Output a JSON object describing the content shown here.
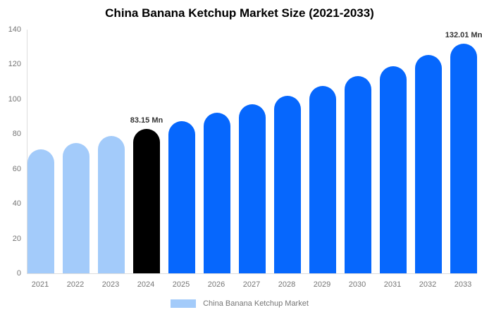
{
  "chart_data": {
    "type": "bar",
    "title": "China Banana Ketchup Market Size (2021-2033)",
    "xlabel": "",
    "ylabel": "",
    "unit": "Mn",
    "ylim": [
      0,
      140
    ],
    "yticks": [
      0,
      20,
      40,
      60,
      80,
      100,
      120,
      140
    ],
    "grid": false,
    "categories": [
      "2021",
      "2022",
      "2023",
      "2024",
      "2025",
      "2026",
      "2027",
      "2028",
      "2029",
      "2030",
      "2031",
      "2032",
      "2033"
    ],
    "values": [
      71.28,
      75.03,
      78.99,
      83.15,
      87.53,
      92.15,
      97.0,
      102.11,
      107.49,
      113.16,
      119.12,
      125.4,
      132.01
    ],
    "bar_labels": [
      "",
      "",
      "",
      "83.15 Mn",
      "",
      "",
      "",
      "",
      "",
      "",
      "",
      "",
      "132.01 Mn"
    ],
    "bar_colors": [
      "#A3CBFA",
      "#A3CBFA",
      "#A3CBFA",
      "#000000",
      "#0667FD",
      "#0667FD",
      "#0667FD",
      "#0667FD",
      "#0667FD",
      "#0667FD",
      "#0667FD",
      "#0667FD",
      "#0667FD"
    ],
    "colors": {
      "historical": "#A3CBFA",
      "base_year": "#000000",
      "forecast": "#0667FD",
      "axis_line": "#DDDDDD",
      "tick_text": "#757575",
      "value_label_text": "#333333",
      "title_text": "#000000"
    },
    "legend": {
      "position": "bottom",
      "label": "China Banana Ketchup Market",
      "swatch_color": "#A3CBFA"
    }
  }
}
